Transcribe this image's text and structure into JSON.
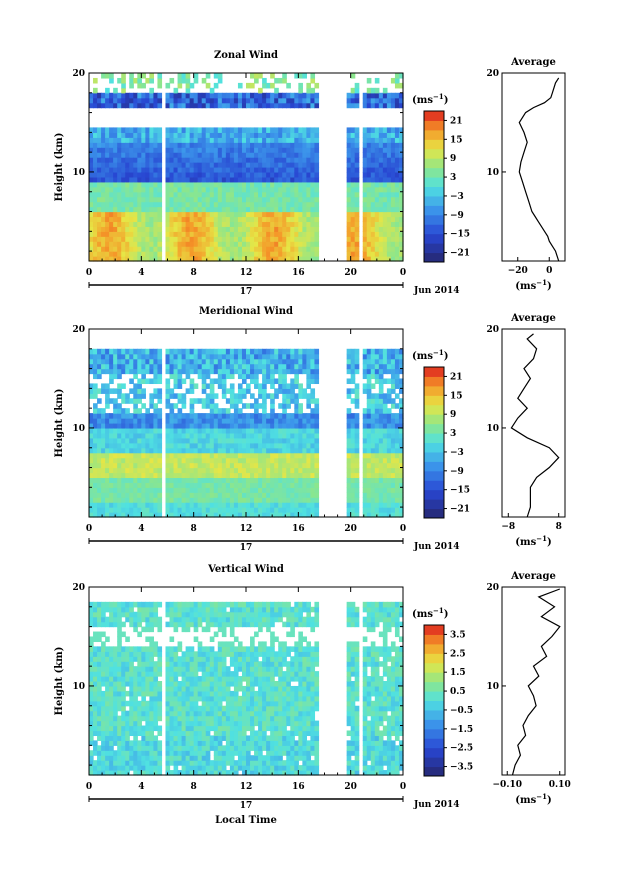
{
  "chart_data": [
    {
      "type": "heatmap",
      "title": "Zonal Wind",
      "ylabel": "Height (km)",
      "xlabel": "",
      "x_ticks": [
        "0",
        "4",
        "8",
        "12",
        "16",
        "20",
        "0"
      ],
      "y_ticks": [
        "10",
        "20"
      ],
      "date_label": "17",
      "date_suffix": "Jun 2014",
      "xlim": [
        0,
        24
      ],
      "ylim": [
        1,
        20
      ],
      "colorbar": {
        "unit_base": "(ms",
        "unit_exp": "−1",
        "unit_close": ")",
        "ticks": [
          "21",
          "15",
          "9",
          "3",
          "−3",
          "−9",
          "−15",
          "−21"
        ],
        "range": [
          -24,
          24
        ]
      },
      "profile": {
        "title": "Average",
        "x_ticks": [
          "−20",
          "0"
        ],
        "xlim": [
          -30,
          10
        ],
        "unit_base": "(ms",
        "unit_exp": "−1",
        "unit_close": ")",
        "points": [
          [
            6,
            1
          ],
          [
            5,
            1.5
          ],
          [
            4,
            2
          ],
          [
            2,
            2.5
          ],
          [
            0,
            3
          ],
          [
            -1,
            3.5
          ],
          [
            -3,
            4
          ],
          [
            -5,
            4.5
          ],
          [
            -7,
            5
          ],
          [
            -9,
            5.5
          ],
          [
            -11,
            6
          ],
          [
            -13,
            7
          ],
          [
            -15,
            8
          ],
          [
            -17,
            9
          ],
          [
            -19,
            10
          ],
          [
            -18,
            11
          ],
          [
            -16,
            12
          ],
          [
            -14,
            13
          ],
          [
            -16,
            14
          ],
          [
            -19,
            15
          ],
          [
            -15,
            16
          ],
          [
            -10,
            16.5
          ],
          [
            -3,
            17
          ],
          [
            1,
            17.5
          ],
          [
            2,
            18
          ],
          [
            4,
            19
          ],
          [
            6,
            19.5
          ]
        ]
      }
    },
    {
      "type": "heatmap",
      "title": "Meridional Wind",
      "ylabel": "Height (km)",
      "xlabel": "",
      "x_ticks": [
        "0",
        "4",
        "8",
        "12",
        "16",
        "20",
        "0"
      ],
      "y_ticks": [
        "10",
        "20"
      ],
      "date_label": "17",
      "date_suffix": "Jun 2014",
      "xlim": [
        0,
        24
      ],
      "ylim": [
        1,
        20
      ],
      "colorbar": {
        "unit_base": "(ms",
        "unit_exp": "−1",
        "unit_close": ")",
        "ticks": [
          "21",
          "15",
          "9",
          "3",
          "−3",
          "−9",
          "−15",
          "−21"
        ],
        "range": [
          -24,
          24
        ]
      },
      "profile": {
        "title": "Average",
        "x_ticks": [
          "−8",
          "8"
        ],
        "xlim": [
          -10,
          10
        ],
        "unit_base": "(ms",
        "unit_exp": "−1",
        "unit_close": ")",
        "points": [
          [
            -2,
            1
          ],
          [
            -1,
            2
          ],
          [
            -1,
            3
          ],
          [
            -1,
            4
          ],
          [
            1,
            5
          ],
          [
            5,
            6
          ],
          [
            8,
            7
          ],
          [
            5,
            8
          ],
          [
            -2,
            9
          ],
          [
            -7,
            10
          ],
          [
            -5,
            11
          ],
          [
            -2,
            12
          ],
          [
            -5,
            13
          ],
          [
            -3,
            14
          ],
          [
            -1,
            15
          ],
          [
            -3,
            16
          ],
          [
            0,
            17
          ],
          [
            1,
            18
          ],
          [
            -2,
            19
          ],
          [
            0,
            19.5
          ]
        ]
      }
    },
    {
      "type": "heatmap",
      "title": "Vertical Wind",
      "ylabel": "Height (km)",
      "xlabel": "Local Time",
      "x_ticks": [
        "0",
        "4",
        "8",
        "12",
        "16",
        "20",
        "0"
      ],
      "y_ticks": [
        "10",
        "20"
      ],
      "date_label": "17",
      "date_suffix": "Jun 2014",
      "xlim": [
        0,
        24
      ],
      "ylim": [
        1,
        20
      ],
      "colorbar": {
        "unit_base": "(ms",
        "unit_exp": "−1",
        "unit_close": ")",
        "ticks": [
          "3.5",
          "2.5",
          "1.5",
          "0.5",
          "−0.5",
          "−1.5",
          "−2.5",
          "−3.5"
        ],
        "range": [
          -4,
          4
        ]
      },
      "profile": {
        "title": "Average",
        "x_ticks": [
          "−0.10",
          "0.10"
        ],
        "xlim": [
          -0.12,
          0.12
        ],
        "unit_base": "(ms",
        "unit_exp": "−1",
        "unit_close": ")",
        "points": [
          [
            -0.08,
            1
          ],
          [
            -0.07,
            2
          ],
          [
            -0.05,
            3
          ],
          [
            -0.06,
            4
          ],
          [
            -0.03,
            5
          ],
          [
            -0.04,
            6
          ],
          [
            -0.02,
            7
          ],
          [
            0.01,
            8
          ],
          [
            0.0,
            9
          ],
          [
            -0.02,
            10
          ],
          [
            0.02,
            11
          ],
          [
            0.0,
            12
          ],
          [
            0.05,
            13
          ],
          [
            0.03,
            14
          ],
          [
            0.07,
            15
          ],
          [
            0.1,
            16
          ],
          [
            0.03,
            17
          ],
          [
            0.08,
            18
          ],
          [
            0.02,
            19
          ],
          [
            0.1,
            19.8
          ]
        ]
      }
    }
  ]
}
